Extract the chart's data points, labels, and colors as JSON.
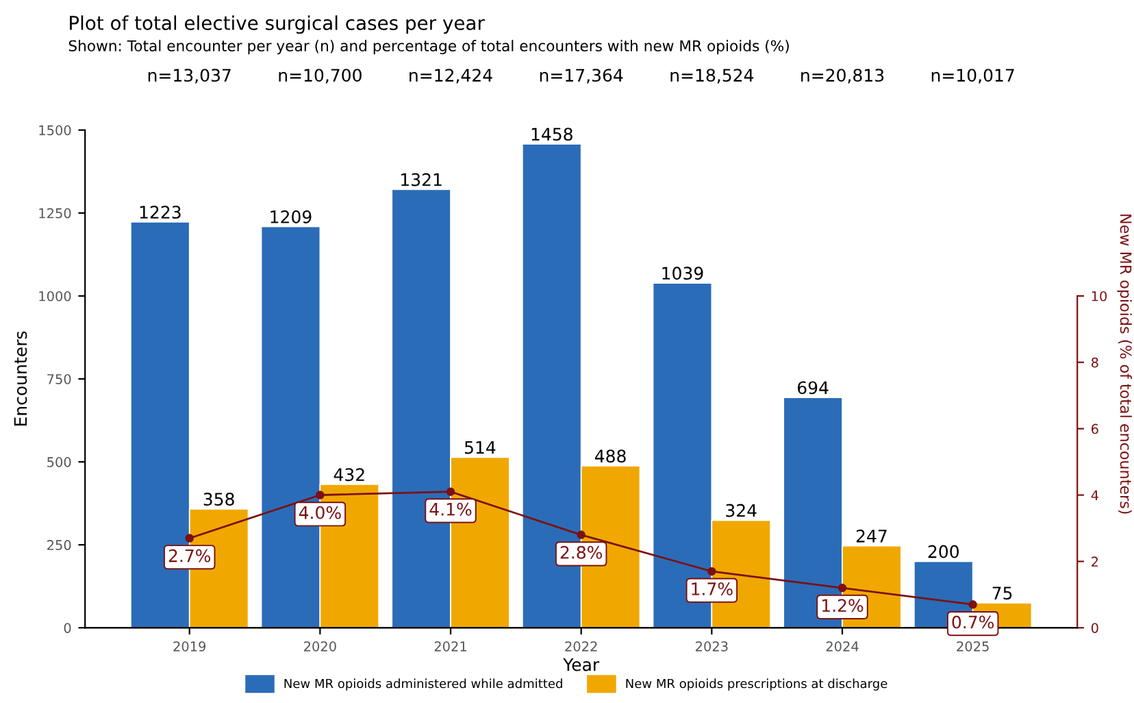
{
  "chart_data": {
    "type": "bar",
    "title": "Plot of total elective surgical cases per year",
    "subtitle": "Shown: Total encounter per year (n) and percentage of total encounters with new MR opioids (%)",
    "xlabel": "Year",
    "ylabel": "Encounters",
    "y2label": "New MR opioids (% of total encounters)",
    "categories": [
      "2019",
      "2020",
      "2021",
      "2022",
      "2023",
      "2024",
      "2025"
    ],
    "series": [
      {
        "name": "New MR opioids administered while admitted",
        "color": "#2b6cb8",
        "values": [
          1223,
          1209,
          1321,
          1458,
          1039,
          694,
          200
        ]
      },
      {
        "name": "New MR opioids prescriptions at discharge",
        "color": "#f0a800",
        "values": [
          358,
          432,
          514,
          488,
          324,
          247,
          75
        ]
      },
      {
        "type": "line",
        "axis": "y2",
        "color": "#7b1113",
        "marker": "circle",
        "values": [
          2.7,
          4.0,
          4.1,
          2.8,
          1.7,
          1.2,
          0.7
        ],
        "value_labels": [
          "2.7%",
          "4.0%",
          "4.1%",
          "2.8%",
          "1.7%",
          "1.2%",
          "0.7%"
        ]
      }
    ],
    "ylim": [
      0,
      1500
    ],
    "yticks": [
      0,
      250,
      500,
      750,
      1000,
      1250,
      1500
    ],
    "y2lim": [
      0,
      15
    ],
    "y2ticks": [
      0,
      2,
      4,
      6,
      8,
      10
    ],
    "data_labels": true,
    "legend": "bottom",
    "grid": false,
    "annotations": [
      "n=13,037",
      "n=10,700",
      "n=12,424",
      "n=17,364",
      "n=18,524",
      "n=20,813",
      "n=10,017"
    ]
  }
}
